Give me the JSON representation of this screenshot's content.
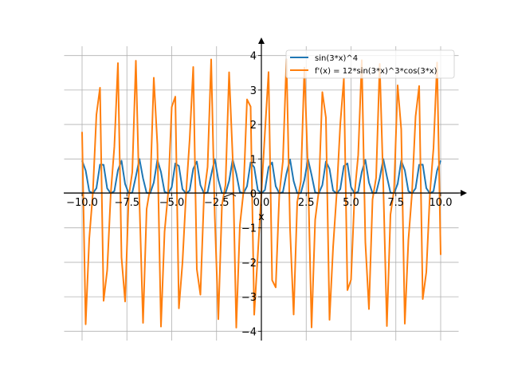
{
  "chart_data": {
    "type": "line",
    "title": "",
    "xlabel": "x",
    "ylabel": "",
    "xlim": [
      -11,
      11
    ],
    "ylim": [
      -4.27,
      4.27
    ],
    "grid": true,
    "legend_position": "top-right",
    "x_sampling": {
      "start": -10,
      "stop": 10,
      "step": 0.2,
      "count": 101
    },
    "x_ticks": [
      -10,
      -7.5,
      -5,
      -2.5,
      0,
      2.5,
      5,
      7.5,
      10
    ],
    "x_tick_labels": [
      "−10.0",
      "−7.5",
      "−5.0",
      "−2.5",
      "0.0",
      "2.5",
      "5.0",
      "7.5",
      "10.0"
    ],
    "y_ticks": [
      -4,
      -3,
      -2,
      -1,
      0,
      1,
      2,
      3,
      4
    ],
    "y_tick_labels": [
      "−4",
      "−3",
      "−2",
      "−1",
      "0",
      "1",
      "2",
      "3",
      "4"
    ],
    "series": [
      {
        "name": "sin(3*x)^4",
        "expr": "sin(3*x)^4",
        "color": "#1f77b4"
      },
      {
        "name": "f'(x) = 12*sin(3*x)^3*cos(3*x)",
        "expr": "12*sin(3*x)^3*cos(3*x)",
        "color": "#ff7f0e"
      }
    ]
  }
}
